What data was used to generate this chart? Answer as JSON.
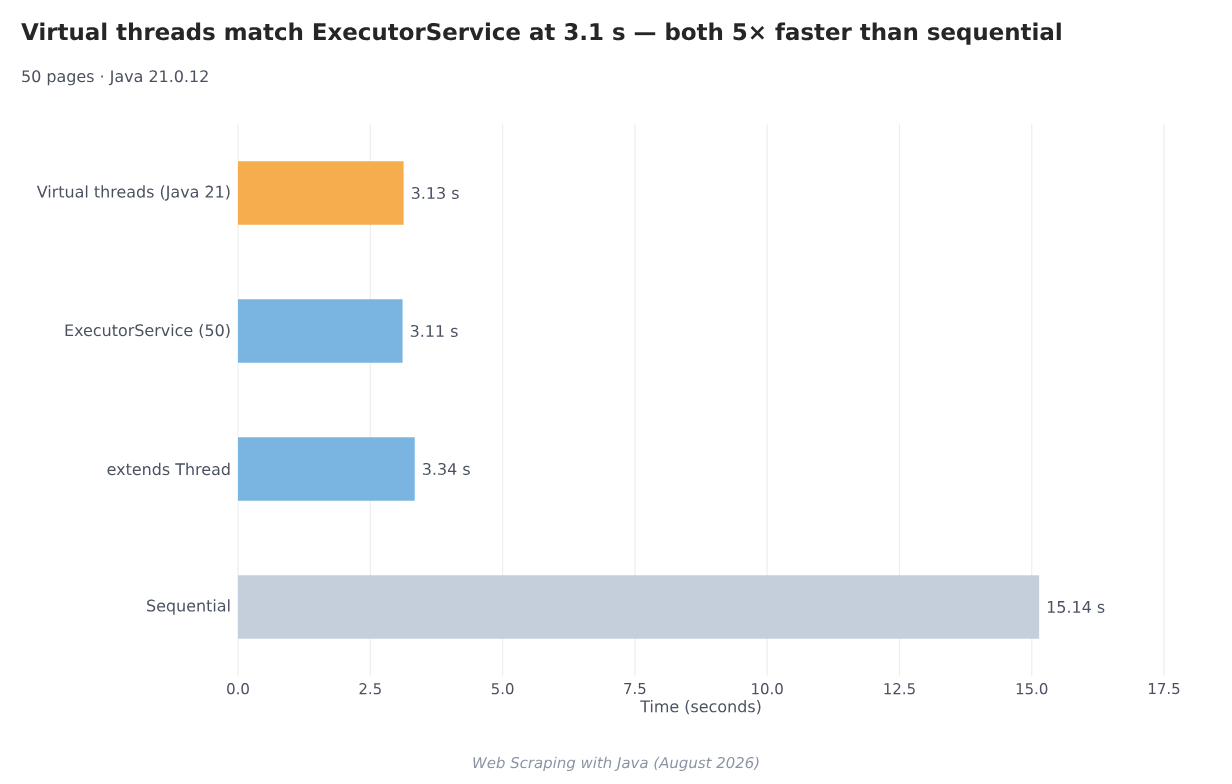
{
  "chart_data": {
    "type": "bar",
    "orientation": "horizontal",
    "title": "Virtual threads match ExecutorService at 3.1 s — both 5× faster than sequential",
    "subtitle": "50 pages · Java 21.0.12",
    "categories": [
      "Virtual threads (Java 21)",
      "ExecutorService (50)",
      "extends Thread",
      "Sequential"
    ],
    "values": [
      3.13,
      3.11,
      3.34,
      15.14
    ],
    "colors": [
      "#f5ad4e",
      "#7ab5e2",
      "#7ab5e2",
      "#c5cfdb"
    ],
    "value_labels": [
      "3.13 s",
      "3.11 s",
      "3.34 s",
      "15.14 s"
    ],
    "xlabel": "Time (seconds)",
    "xlim": [
      0,
      17.5
    ],
    "xticks": [
      {
        "value": 0,
        "label": "0.0"
      },
      {
        "value": 2.5,
        "label": "2.5"
      },
      {
        "value": 5,
        "label": "5.0"
      },
      {
        "value": 7.5,
        "label": "7.5"
      },
      {
        "value": 10,
        "label": "10.0"
      },
      {
        "value": 12.5,
        "label": "12.5"
      },
      {
        "value": 15,
        "label": "15.0"
      },
      {
        "value": 17.5,
        "label": "17.5"
      }
    ],
    "grid": "x",
    "annotations": [
      "Web Scraping with Java (August 2026)"
    ]
  }
}
